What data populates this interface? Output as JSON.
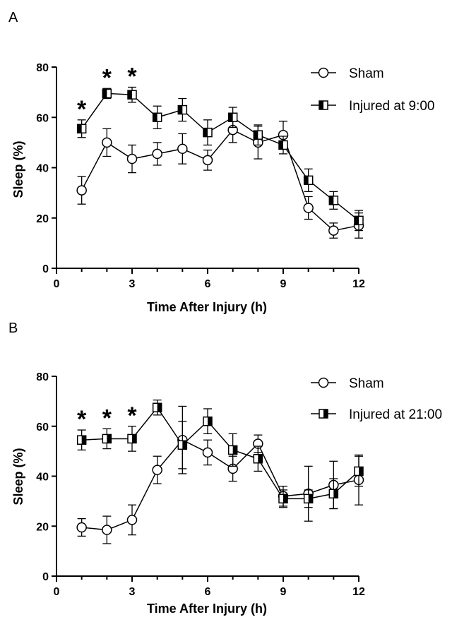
{
  "panels": [
    {
      "id": "A",
      "panel_label": "A",
      "xlabel": "Time After Injury (h)",
      "ylabel": "Sleep (%)",
      "legend": [
        "Sham",
        "Injured at 9:00"
      ]
    },
    {
      "id": "B",
      "panel_label": "B",
      "xlabel": "Time After Injury (h)",
      "ylabel": "Sleep (%)",
      "legend": [
        "Sham",
        "Injured at 21:00"
      ]
    }
  ],
  "chart_data": [
    {
      "type": "line",
      "panel": "A",
      "title": "",
      "xlabel": "Time After Injury (h)",
      "ylabel": "Sleep (%)",
      "xlim": [
        0,
        12
      ],
      "ylim": [
        0,
        80
      ],
      "x_ticks": [
        0,
        3,
        6,
        9,
        12
      ],
      "y_ticks": [
        0,
        20,
        40,
        60,
        80
      ],
      "x": [
        1,
        2,
        3,
        4,
        5,
        6,
        7,
        8,
        9,
        10,
        11,
        12
      ],
      "legend_position": "top-right",
      "grid": false,
      "series": [
        {
          "name": "Sham",
          "marker": "open-circle",
          "values": [
            31,
            50,
            43.5,
            45.5,
            47.5,
            43,
            55,
            50,
            53,
            24,
            15,
            17
          ],
          "errors": [
            5.5,
            5.5,
            5.5,
            4.5,
            6,
            4,
            5,
            6.5,
            5.5,
            4.5,
            3,
            5
          ]
        },
        {
          "name": "Injured at 9:00",
          "marker": "half-filled-square",
          "values": [
            55.5,
            69.5,
            69,
            60,
            63,
            54,
            60,
            53,
            49,
            35,
            27,
            19
          ],
          "errors": [
            3.5,
            2,
            3,
            4.5,
            4.5,
            5,
            4,
            4,
            3.5,
            4.5,
            3.5,
            4
          ]
        }
      ],
      "significance": [
        {
          "x": 1,
          "label": "*"
        },
        {
          "x": 2,
          "label": "*"
        },
        {
          "x": 3,
          "label": "*"
        }
      ]
    },
    {
      "type": "line",
      "panel": "B",
      "title": "",
      "xlabel": "Time After Injury (h)",
      "ylabel": "Sleep (%)",
      "xlim": [
        0,
        12
      ],
      "ylim": [
        0,
        80
      ],
      "x_ticks": [
        0,
        3,
        6,
        9,
        12
      ],
      "y_ticks": [
        0,
        20,
        40,
        60,
        80
      ],
      "x": [
        1,
        2,
        3,
        4,
        5,
        6,
        7,
        8,
        9,
        10,
        11,
        12
      ],
      "legend_position": "top-right",
      "grid": false,
      "series": [
        {
          "name": "Sham",
          "marker": "open-circle",
          "values": [
            19.5,
            18.5,
            22.5,
            42.5,
            54.5,
            49.5,
            43,
            53,
            32,
            33,
            36.5,
            38.5
          ],
          "errors": [
            3.5,
            5.5,
            6,
            5.5,
            13.5,
            5,
            5,
            3.5,
            4,
            11,
            9.5,
            10
          ]
        },
        {
          "name": "Injured at 21:00",
          "marker": "half-filled-square",
          "values": [
            54.5,
            55,
            55,
            67.5,
            52.5,
            62,
            50.5,
            47,
            31,
            31,
            33,
            42
          ],
          "errors": [
            4,
            4,
            5,
            3,
            9.5,
            5,
            6.5,
            5,
            3.5,
            3.5,
            6,
            6
          ]
        }
      ],
      "significance": [
        {
          "x": 1,
          "label": "*"
        },
        {
          "x": 2,
          "label": "*"
        },
        {
          "x": 3,
          "label": "*"
        }
      ]
    }
  ]
}
